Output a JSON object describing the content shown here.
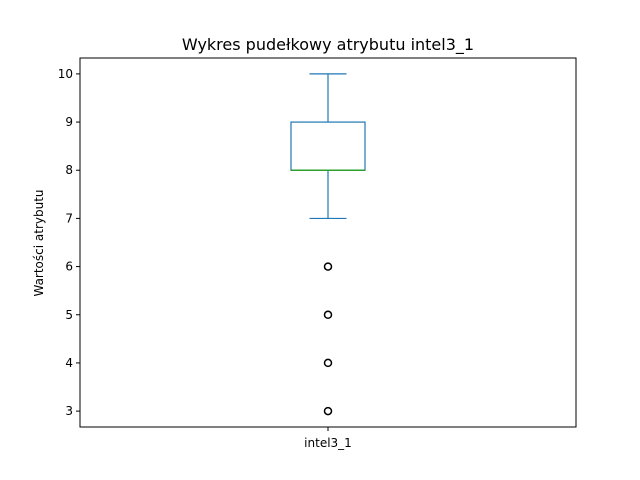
{
  "chart_data": {
    "type": "box",
    "title": "Wykres pudełkowy atrybutu intel3_1",
    "xlabel": "",
    "ylabel": "Wartości atrybutu",
    "categories": [
      "intel3_1"
    ],
    "yticks": [
      3,
      4,
      5,
      6,
      7,
      8,
      9,
      10
    ],
    "ylim": [
      2.67,
      10.33
    ],
    "grid": false,
    "boxes": [
      {
        "name": "intel3_1",
        "whisker_low": 7,
        "q1": 8,
        "median": 8,
        "q3": 9,
        "whisker_high": 10,
        "outliers": [
          6,
          5,
          4,
          3
        ]
      }
    ],
    "colors": {
      "box": "#1f77b4",
      "median": "#2ca02c",
      "outlier": "#000000"
    }
  }
}
